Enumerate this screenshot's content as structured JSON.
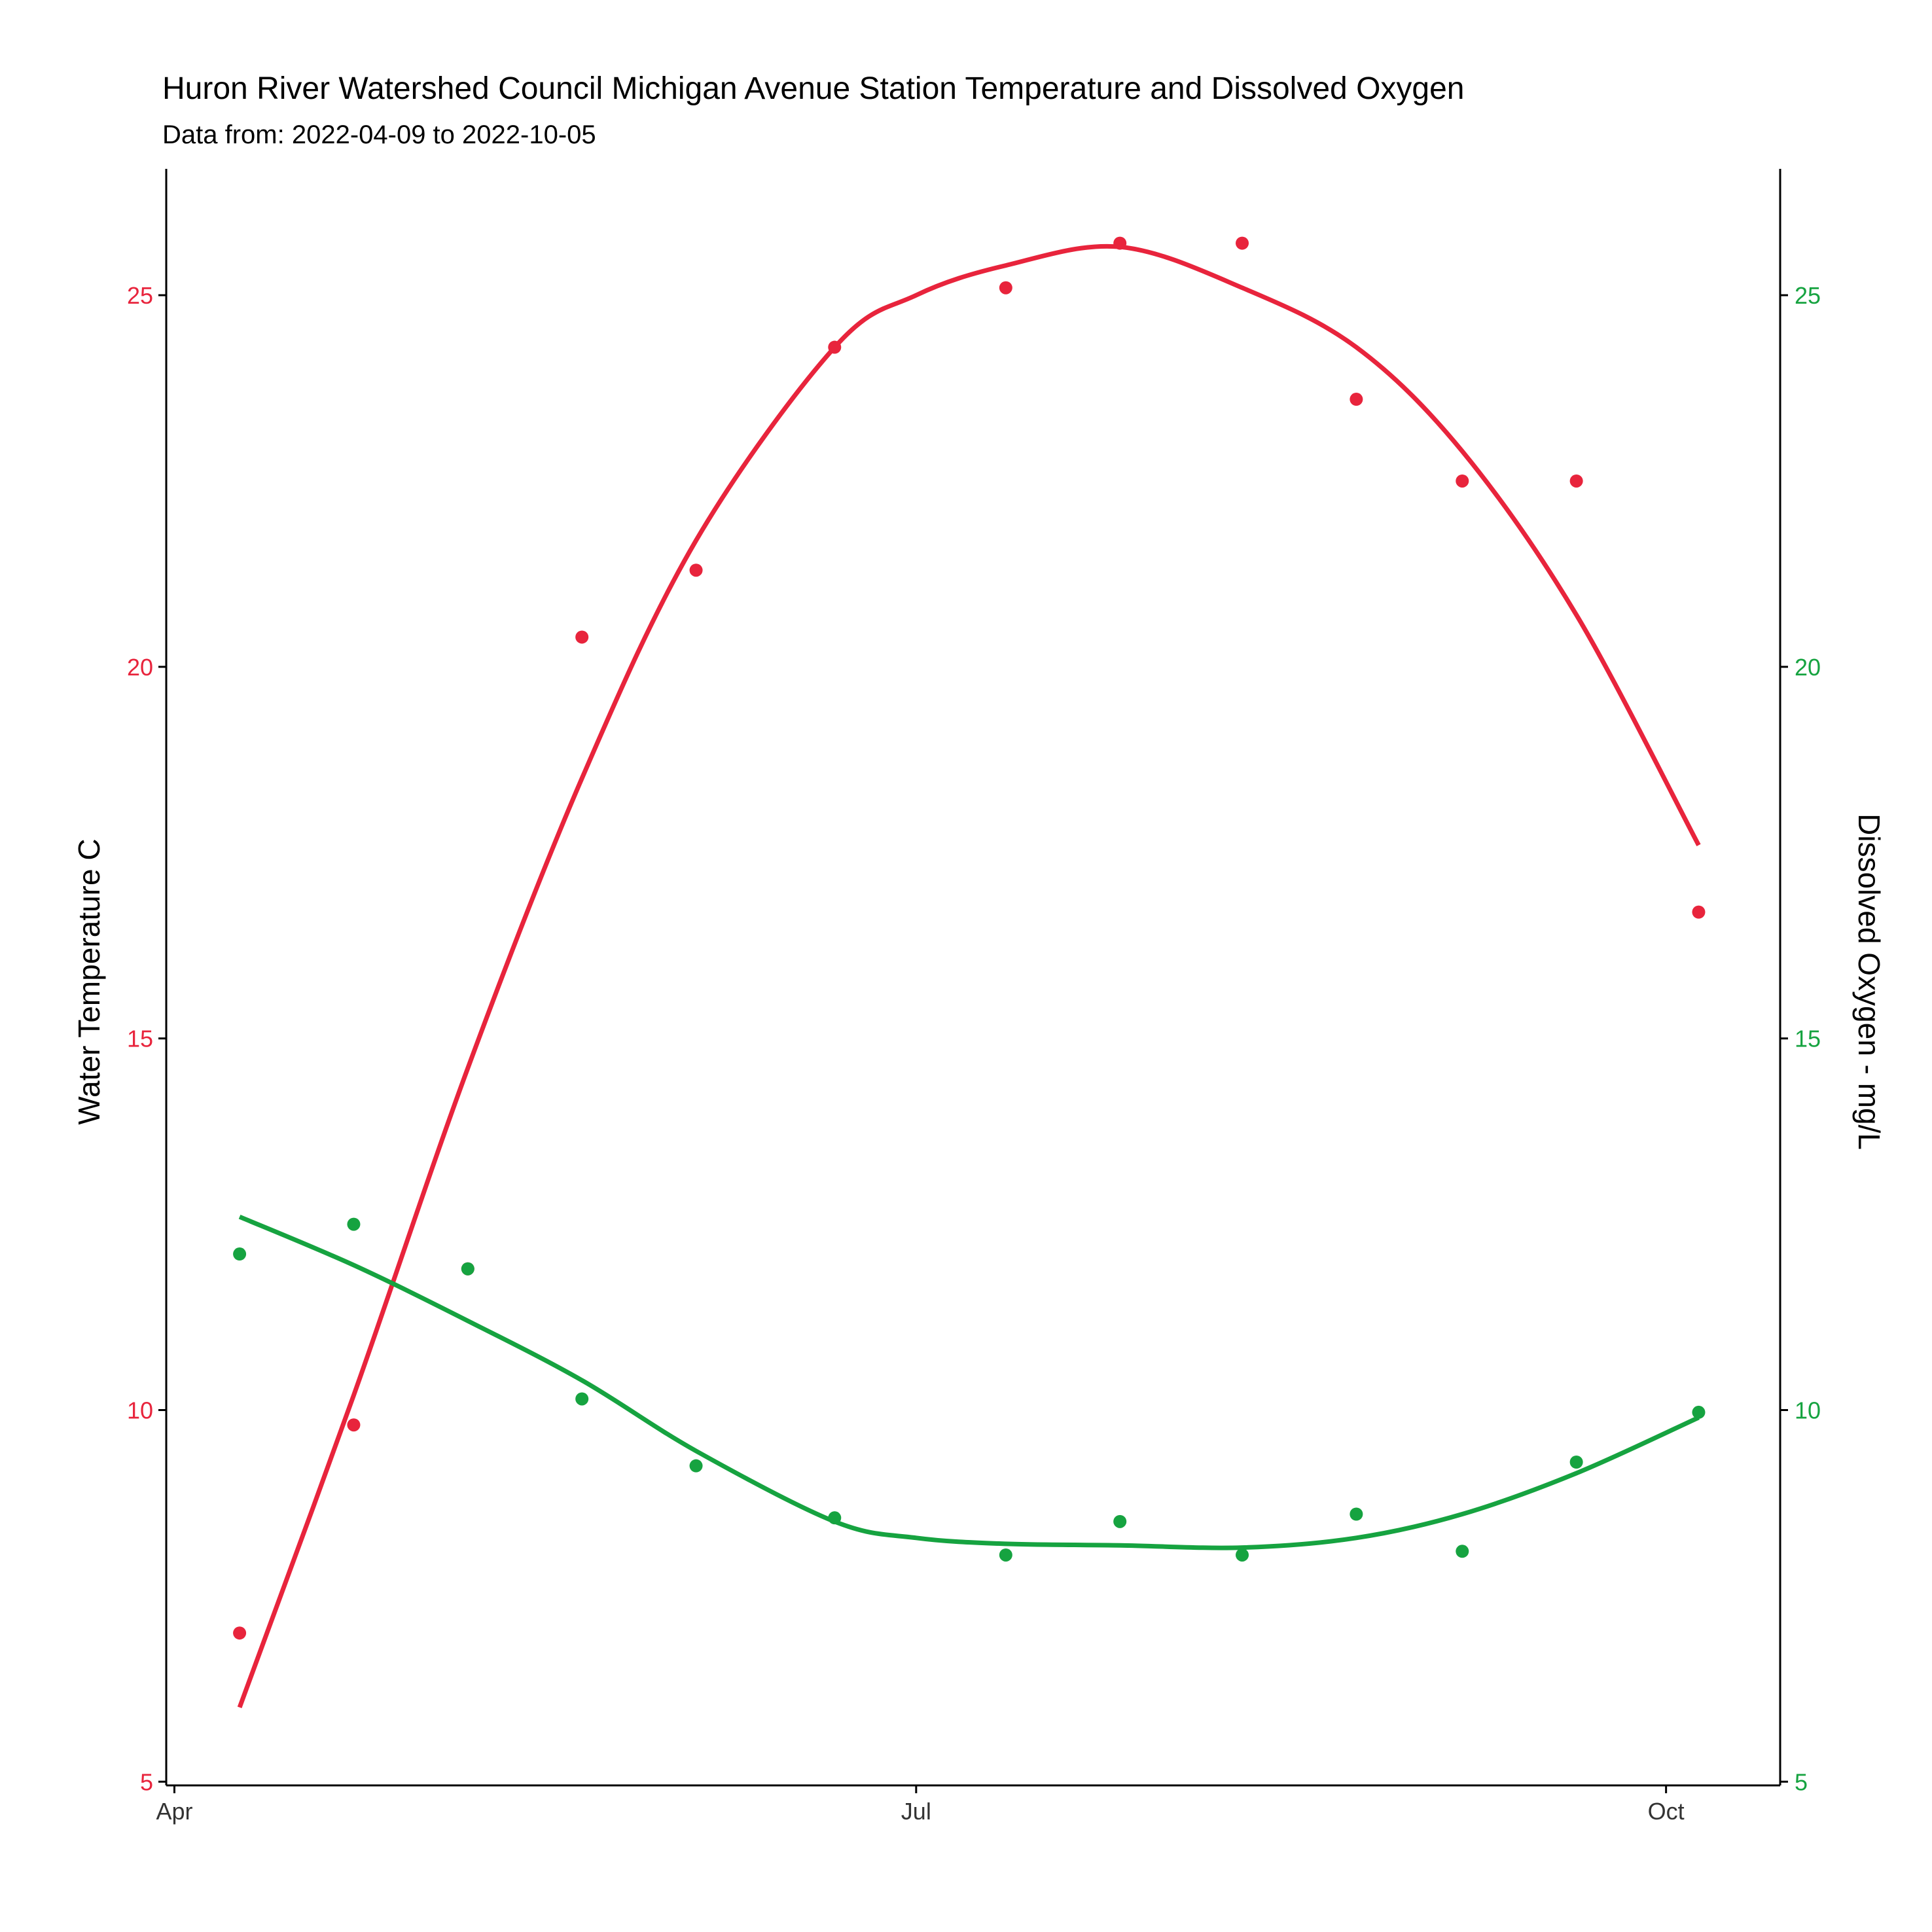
{
  "chart_data": {
    "type": "scatter",
    "title": "Huron River Watershed Council Michigan Avenue Station Temperature and Dissolved Oxygen",
    "subtitle": "Data from: 2022-04-09 to 2022-10-05",
    "ylabel": "Water Temperature C",
    "y2label": "Dissolved Oxygen - mg/L",
    "xlim": [
      "2022-03-31",
      "2022-10-15"
    ],
    "ylim": [
      4.95,
      26.7
    ],
    "xticks": [
      {
        "date": "2022-04-01",
        "label": "Apr"
      },
      {
        "date": "2022-07-01",
        "label": "Jul"
      },
      {
        "date": "2022-10-01",
        "label": "Oct"
      }
    ],
    "yticks": [
      5,
      10,
      15,
      20,
      25
    ],
    "y2ticks": [
      5,
      10,
      15,
      20,
      25
    ],
    "grid": false,
    "legend": "none",
    "series": [
      {
        "color": "#E8243C",
        "axis": "left",
        "points": [
          {
            "x": "2022-04-09",
            "y": 7.0
          },
          {
            "x": "2022-04-23",
            "y": 9.8
          },
          {
            "x": "2022-05-07",
            "y": 11.9
          },
          {
            "x": "2022-05-21",
            "y": 20.4
          },
          {
            "x": "2022-06-04",
            "y": 21.3
          },
          {
            "x": "2022-06-21",
            "y": 24.3
          },
          {
            "x": "2022-07-12",
            "y": 25.1
          },
          {
            "x": "2022-07-26",
            "y": 25.7
          },
          {
            "x": "2022-08-10",
            "y": 25.7
          },
          {
            "x": "2022-08-24",
            "y": 23.6
          },
          {
            "x": "2022-09-06",
            "y": 22.5
          },
          {
            "x": "2022-09-20",
            "y": 22.5
          },
          {
            "x": "2022-10-05",
            "y": 16.7
          }
        ],
        "smooth": [
          {
            "x": "2022-04-09",
            "y": 6.0
          },
          {
            "x": "2022-04-23",
            "y": 10.2
          },
          {
            "x": "2022-05-07",
            "y": 14.6
          },
          {
            "x": "2022-05-21",
            "y": 18.5
          },
          {
            "x": "2022-06-04",
            "y": 21.7
          },
          {
            "x": "2022-06-21",
            "y": 24.3
          },
          {
            "x": "2022-07-01",
            "y": 25.0
          },
          {
            "x": "2022-07-12",
            "y": 25.4
          },
          {
            "x": "2022-07-26",
            "y": 25.65
          },
          {
            "x": "2022-08-10",
            "y": 25.1
          },
          {
            "x": "2022-08-24",
            "y": 24.3
          },
          {
            "x": "2022-09-06",
            "y": 22.9
          },
          {
            "x": "2022-09-20",
            "y": 20.7
          },
          {
            "x": "2022-10-05",
            "y": 17.6
          }
        ]
      },
      {
        "color": "#16A340",
        "axis": "right",
        "points": [
          {
            "x": "2022-04-09",
            "y": 12.1
          },
          {
            "x": "2022-04-23",
            "y": 12.5
          },
          {
            "x": "2022-05-07",
            "y": 11.9
          },
          {
            "x": "2022-05-21",
            "y": 10.15
          },
          {
            "x": "2022-06-04",
            "y": 9.25
          },
          {
            "x": "2022-06-21",
            "y": 8.55
          },
          {
            "x": "2022-07-12",
            "y": 8.05
          },
          {
            "x": "2022-07-26",
            "y": 8.5
          },
          {
            "x": "2022-08-10",
            "y": 8.05
          },
          {
            "x": "2022-08-24",
            "y": 8.6
          },
          {
            "x": "2022-09-06",
            "y": 8.1
          },
          {
            "x": "2022-09-20",
            "y": 9.3
          },
          {
            "x": "2022-10-05",
            "y": 9.97
          }
        ],
        "smooth": [
          {
            "x": "2022-04-09",
            "y": 12.6
          },
          {
            "x": "2022-04-23",
            "y": 11.95
          },
          {
            "x": "2022-05-07",
            "y": 11.2
          },
          {
            "x": "2022-05-21",
            "y": 10.4
          },
          {
            "x": "2022-06-04",
            "y": 9.45
          },
          {
            "x": "2022-06-21",
            "y": 8.5
          },
          {
            "x": "2022-07-01",
            "y": 8.28
          },
          {
            "x": "2022-07-12",
            "y": 8.2
          },
          {
            "x": "2022-07-26",
            "y": 8.18
          },
          {
            "x": "2022-08-10",
            "y": 8.15
          },
          {
            "x": "2022-08-24",
            "y": 8.28
          },
          {
            "x": "2022-09-06",
            "y": 8.6
          },
          {
            "x": "2022-09-20",
            "y": 9.15
          },
          {
            "x": "2022-10-05",
            "y": 9.9
          }
        ]
      }
    ]
  }
}
